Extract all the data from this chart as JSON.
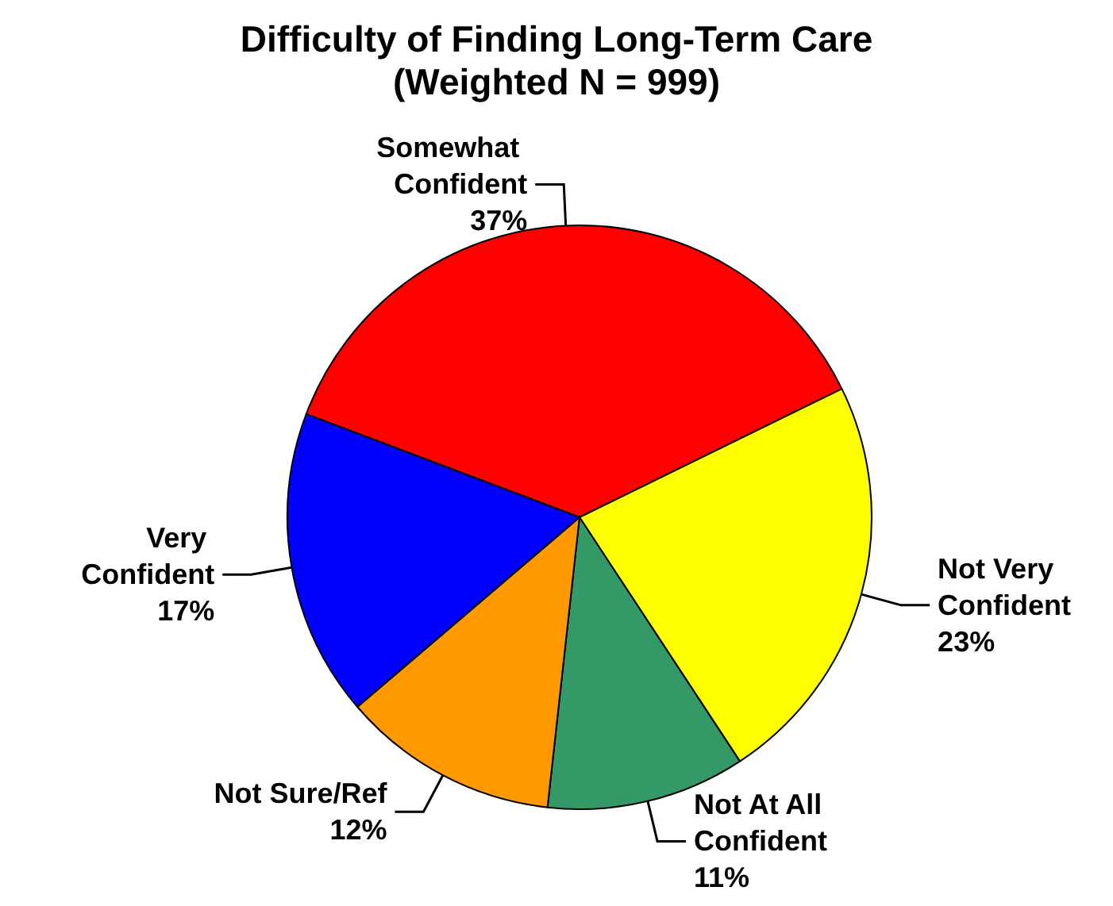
{
  "chart_data": {
    "type": "pie",
    "title": "Difficulty of Finding Long-Term Care",
    "subtitle": "(Weighted N = 999)",
    "categories": [
      "Somewhat Confident",
      "Not Very Confident",
      "Not At All Confident",
      "Not Sure/Ref",
      "Very Confident"
    ],
    "values": [
      37,
      23,
      11,
      12,
      17
    ],
    "value_labels": [
      "37%",
      "23%",
      "11%",
      "12%",
      "17%"
    ],
    "colors": [
      "#ff0000",
      "#ffff00",
      "#339966",
      "#ff9900",
      "#0000ff"
    ],
    "legend": false
  }
}
